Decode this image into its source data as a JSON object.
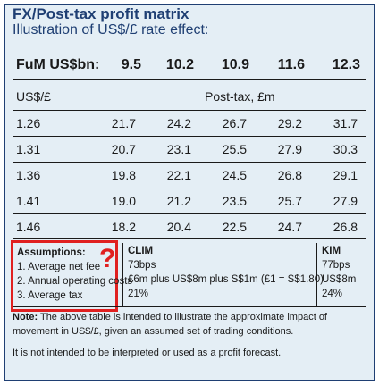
{
  "title": "FX/Post-tax profit matrix",
  "subtitle": "Illustration of US$/£ rate effect:",
  "fum_label": "FuM US$bn:",
  "fum_values": [
    "9.5",
    "10.2",
    "10.9",
    "11.6",
    "12.3"
  ],
  "rate_header": "US$/£",
  "profit_header": "Post-tax, £m",
  "rows": [
    {
      "rate": "1.26",
      "values": [
        "21.7",
        "24.2",
        "26.7",
        "29.2",
        "31.7"
      ]
    },
    {
      "rate": "1.31",
      "values": [
        "20.7",
        "23.1",
        "25.5",
        "27.9",
        "30.3"
      ]
    },
    {
      "rate": "1.36",
      "values": [
        "19.8",
        "22.1",
        "24.5",
        "26.8",
        "29.1"
      ]
    },
    {
      "rate": "1.41",
      "values": [
        "19.0",
        "21.2",
        "23.5",
        "25.7",
        "27.9"
      ]
    },
    {
      "rate": "1.46",
      "values": [
        "18.2",
        "20.4",
        "22.5",
        "24.7",
        "26.8"
      ]
    }
  ],
  "assumptions": {
    "heading": "Assumptions:",
    "items": [
      "1. Average net fee",
      "2. Annual operating costs",
      "3. Average tax"
    ],
    "annotation": "?"
  },
  "clim": {
    "heading": "CLIM",
    "values": [
      "73bps",
      "£6m plus US$8m plus S$1m (£1 = S$1.80)",
      "21%"
    ]
  },
  "kim": {
    "heading": "KIM",
    "values": [
      "77bps",
      "US$8m",
      "24%"
    ]
  },
  "note": {
    "label": "Note:",
    "line1": "The above table is intended to illustrate the approximate impact of",
    "line2": "movement in US$/£, given an assumed set of trading conditions.",
    "line3": "It is not intended to be interpreted or used as a profit forecast."
  },
  "colors": {
    "accent": "#1f3f73",
    "background": "#e4eef5",
    "highlight": "#e02020"
  }
}
